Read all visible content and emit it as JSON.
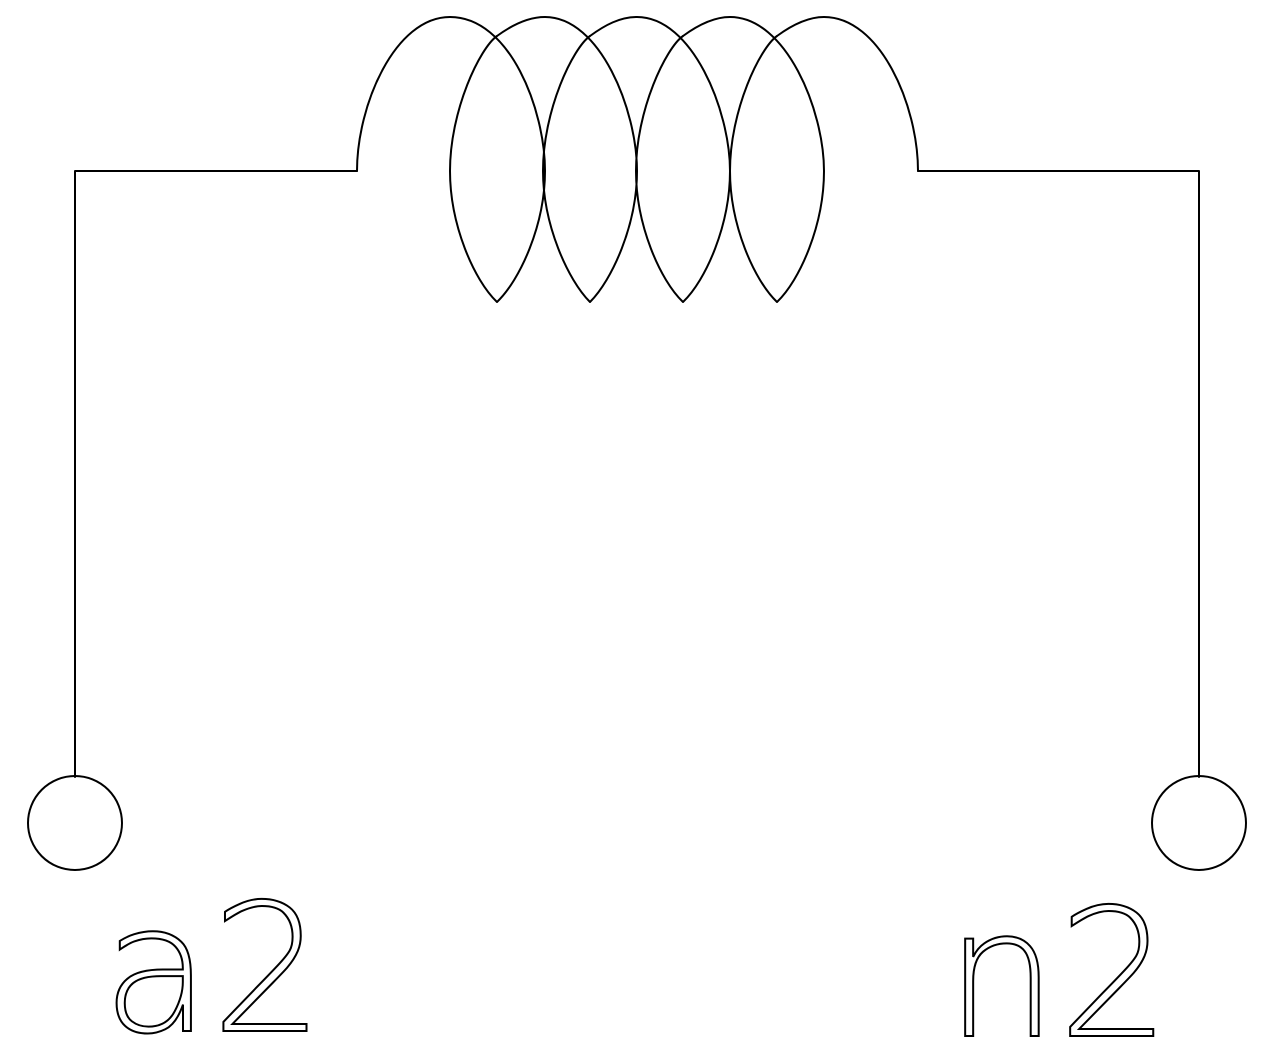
{
  "diagram": {
    "type": "inductor-winding",
    "turns": 5,
    "stroke_color": "#000000",
    "background_color": "#ffffff",
    "terminals": [
      {
        "label": "a2"
      },
      {
        "label": "n2"
      }
    ]
  }
}
